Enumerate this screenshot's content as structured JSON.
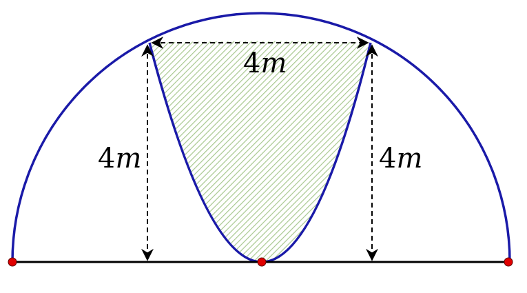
{
  "labels": {
    "width_value": "4",
    "width_unit": "m",
    "left_height_value": "4",
    "left_height_unit": "m",
    "right_height_value": "4",
    "right_height_unit": "m"
  },
  "colors": {
    "curve": "#1a1aa8",
    "baseline": "#000000",
    "dimension_line": "#000000",
    "point_fill": "#e00000",
    "hatch": "#a8c890",
    "hatch_background": "#ffffff"
  }
}
